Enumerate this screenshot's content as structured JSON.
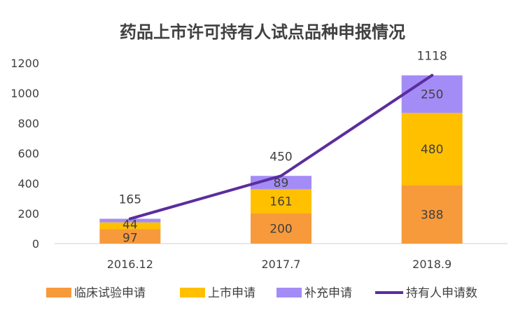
{
  "chart_data": {
    "type": "bar",
    "stacked": true,
    "title": "药品上市许可持有人试点品种申报情况",
    "categories": [
      "2016.12",
      "2017.7",
      "2018.9"
    ],
    "series": [
      {
        "name": "临床试验申请",
        "type": "bar",
        "color": "#F79A3B",
        "values": [
          97,
          200,
          388
        ]
      },
      {
        "name": "上市申请",
        "type": "bar",
        "color": "#FFC000",
        "values": [
          44,
          161,
          480
        ]
      },
      {
        "name": "补充申请",
        "type": "bar",
        "color": "#A48CF6",
        "values": [
          24,
          89,
          250
        ]
      },
      {
        "name": "持有人申请数",
        "type": "line",
        "color": "#5B2D9E",
        "values": [
          165,
          450,
          1118
        ]
      }
    ],
    "data_labels": {
      "临床试验申请": [
        "97",
        "200",
        "388"
      ],
      "上市申请": [
        "44",
        "161",
        "480"
      ],
      "补充申请": [
        "",
        "89",
        "250"
      ],
      "持有人申请数": [
        "165",
        "450",
        "1118"
      ]
    },
    "y_ticks": [
      "0",
      "200",
      "400",
      "600",
      "800",
      "1000",
      "1200"
    ],
    "ylim": [
      0,
      1200
    ],
    "grid": false,
    "legend_position": "bottom"
  }
}
